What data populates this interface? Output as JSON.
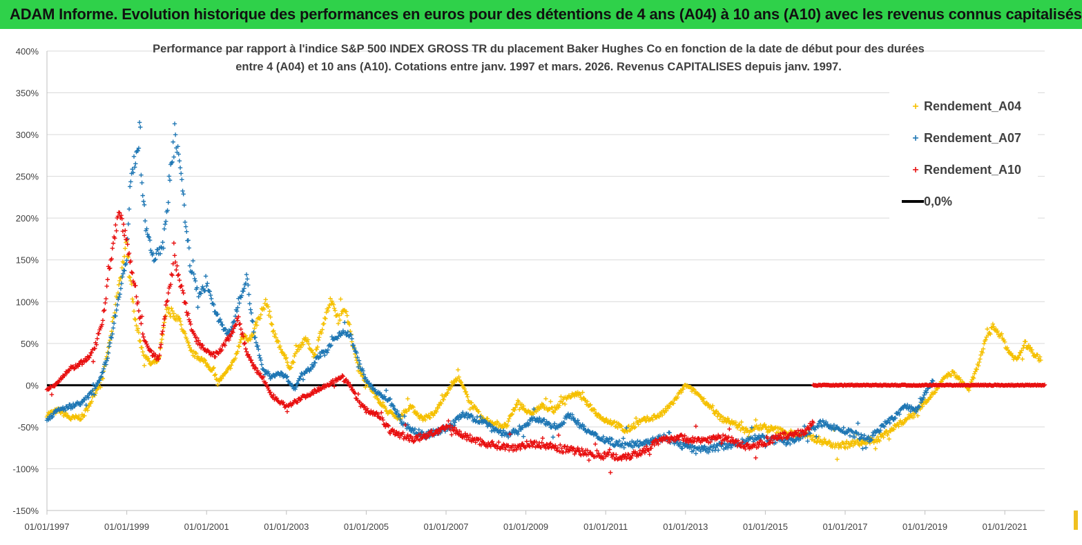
{
  "banner": {
    "title": "ADAM Informe. Evolution historique des performances en euros pour des détentions de 4 ans (A04) à 10 ans (A10) avec les revenus connus capitalisés"
  },
  "chart_data": {
    "type": "scatter",
    "title_line1": "Performance par rapport à l'indice S&P 500 INDEX GROSS TR  du placement Baker Hughes Co en fonction de la date de début pour des durées",
    "title_line2": "entre 4 (A04) et 10 ans (A10). Cotations entre janv. 1997 et mars. 2026. Revenus CAPITALISES depuis janv. 1997.",
    "y_unit": "%",
    "ylim": [
      -150,
      400
    ],
    "y_ticks": [
      "400%",
      "350%",
      "300%",
      "250%",
      "200%",
      "150%",
      "100%",
      "50%",
      "0%",
      "-50%",
      "-100%",
      "-150%"
    ],
    "y_tick_values": [
      400,
      350,
      300,
      250,
      200,
      150,
      100,
      50,
      0,
      -50,
      -100,
      -150
    ],
    "xlim": [
      1997.0,
      2022.0
    ],
    "x_ticks": [
      "01/01/1997",
      "01/01/1999",
      "01/01/2001",
      "01/01/2003",
      "01/01/2005",
      "01/01/2007",
      "01/01/2009",
      "01/01/2011",
      "01/01/2013",
      "01/01/2015",
      "01/01/2017",
      "01/01/2019",
      "01/01/2021"
    ],
    "x_tick_values": [
      1997,
      1999,
      2001,
      2003,
      2005,
      2007,
      2009,
      2011,
      2013,
      2015,
      2017,
      2019,
      2021
    ],
    "grid": "horizontal",
    "legend_position": "right",
    "series": [
      {
        "name": "Rendement_A04",
        "color": "#f5c000",
        "marker": "plus",
        "x": [
          1997.0,
          1997.3,
          1997.6,
          1997.9,
          1998.1,
          1998.4,
          1998.6,
          1998.8,
          1999.0,
          1999.2,
          1999.4,
          1999.6,
          1999.8,
          2000.0,
          2000.3,
          2000.6,
          2000.9,
          2001.1,
          2001.3,
          2001.5,
          2001.7,
          2001.9,
          2002.1,
          2002.3,
          2002.5,
          2002.7,
          2002.9,
          2003.1,
          2003.3,
          2003.5,
          2003.7,
          2003.9,
          2004.1,
          2004.3,
          2004.5,
          2004.7,
          2004.9,
          2005.2,
          2005.5,
          2005.8,
          2006.1,
          2006.4,
          2006.7,
          2007.0,
          2007.3,
          2007.6,
          2007.9,
          2008.2,
          2008.5,
          2008.8,
          2009.1,
          2009.4,
          2009.7,
          2010.0,
          2010.3,
          2010.6,
          2010.9,
          2011.2,
          2011.5,
          2011.8,
          2012.1,
          2012.4,
          2012.7,
          2013.0,
          2013.3,
          2013.6,
          2013.9,
          2014.2,
          2014.5,
          2014.8,
          2015.1,
          2015.4,
          2015.7,
          2016.0,
          2016.3,
          2016.6,
          2016.9,
          2017.2,
          2017.5,
          2017.8,
          2018.1,
          2018.4,
          2018.7,
          2019.0,
          2019.3,
          2019.5,
          2019.7,
          2019.9,
          2020.1,
          2020.3,
          2020.5,
          2020.7,
          2020.9,
          2021.1,
          2021.3,
          2021.5,
          2021.7,
          2021.9
        ],
        "y": [
          -35,
          -30,
          -40,
          -38,
          -20,
          10,
          60,
          120,
          170,
          80,
          40,
          25,
          30,
          90,
          80,
          40,
          30,
          20,
          5,
          15,
          30,
          60,
          55,
          80,
          100,
          60,
          40,
          20,
          45,
          55,
          35,
          70,
          100,
          80,
          90,
          40,
          10,
          -10,
          -30,
          -40,
          -25,
          -40,
          -35,
          -10,
          10,
          -20,
          -40,
          -45,
          -50,
          -20,
          -35,
          -25,
          -30,
          -15,
          -10,
          -25,
          -40,
          -45,
          -55,
          -45,
          -40,
          -35,
          -20,
          0,
          -10,
          -25,
          -40,
          -45,
          -55,
          -50,
          -52,
          -55,
          -58,
          -60,
          -65,
          -70,
          -72,
          -70,
          -68,
          -65,
          -55,
          -45,
          -35,
          -20,
          -5,
          10,
          15,
          5,
          -5,
          20,
          50,
          70,
          60,
          40,
          30,
          50,
          40,
          30
        ]
      },
      {
        "name": "Rendement_A07",
        "color": "#1f77b4",
        "marker": "plus",
        "x": [
          1997.0,
          1997.3,
          1997.6,
          1997.9,
          1998.1,
          1998.3,
          1998.5,
          1998.7,
          1998.85,
          1999.0,
          1999.1,
          1999.3,
          1999.5,
          1999.7,
          1999.9,
          2000.0,
          2000.2,
          2000.4,
          2000.6,
          2000.8,
          2001.0,
          2001.2,
          2001.4,
          2001.6,
          2001.8,
          2002.0,
          2002.2,
          2002.4,
          2002.6,
          2002.8,
          2003.0,
          2003.2,
          2003.4,
          2003.6,
          2003.8,
          2004.0,
          2004.2,
          2004.4,
          2004.6,
          2004.8,
          2005.0,
          2005.3,
          2005.6,
          2005.9,
          2006.2,
          2006.5,
          2006.8,
          2007.1,
          2007.4,
          2007.7,
          2008.0,
          2008.3,
          2008.6,
          2008.9,
          2009.2,
          2009.5,
          2009.8,
          2010.1,
          2010.4,
          2010.7,
          2011.0,
          2011.3,
          2011.6,
          2011.9,
          2012.2,
          2012.5,
          2012.8,
          2013.1,
          2013.4,
          2013.7,
          2014.0,
          2014.3,
          2014.6,
          2014.9,
          2015.2,
          2015.5,
          2015.8,
          2016.1,
          2016.4,
          2016.7,
          2017.0,
          2017.3,
          2017.6,
          2017.9,
          2018.2,
          2018.5,
          2018.8,
          2019.0,
          2019.2
        ],
        "y": [
          -40,
          -30,
          -25,
          -20,
          -10,
          5,
          30,
          80,
          120,
          150,
          250,
          290,
          180,
          150,
          170,
          200,
          310,
          230,
          140,
          110,
          120,
          90,
          70,
          60,
          100,
          130,
          60,
          20,
          10,
          15,
          10,
          -5,
          15,
          20,
          35,
          40,
          55,
          65,
          60,
          30,
          5,
          -10,
          -20,
          -45,
          -55,
          -60,
          -55,
          -50,
          -35,
          -40,
          -45,
          -55,
          -60,
          -50,
          -40,
          -45,
          -50,
          -35,
          -50,
          -60,
          -65,
          -70,
          -72,
          -68,
          -65,
          -62,
          -70,
          -75,
          -78,
          -75,
          -72,
          -70,
          -65,
          -62,
          -66,
          -68,
          -64,
          -55,
          -45,
          -50,
          -55,
          -60,
          -65,
          -50,
          -40,
          -25,
          -30,
          -10,
          5
        ]
      },
      {
        "name": "Rendement_A10",
        "color": "#e81010",
        "marker": "plus",
        "x": [
          1997.0,
          1997.2,
          1997.4,
          1997.6,
          1997.8,
          1998.0,
          1998.2,
          1998.4,
          1998.6,
          1998.8,
          1999.0,
          1999.2,
          1999.4,
          1999.6,
          1999.8,
          2000.0,
          2000.2,
          2000.4,
          2000.6,
          2000.8,
          2001.0,
          2001.2,
          2001.4,
          2001.6,
          2001.8,
          2002.0,
          2002.2,
          2002.4,
          2002.6,
          2002.8,
          2003.0,
          2003.2,
          2003.4,
          2003.6,
          2003.8,
          2004.0,
          2004.2,
          2004.4,
          2004.6,
          2004.8,
          2005.0,
          2005.3,
          2005.6,
          2005.9,
          2006.2,
          2006.5,
          2006.8,
          2007.1,
          2007.4,
          2007.7,
          2008.0,
          2008.3,
          2008.6,
          2008.9,
          2009.2,
          2009.5,
          2009.8,
          2010.1,
          2010.4,
          2010.7,
          2011.0,
          2011.3,
          2011.6,
          2011.9,
          2012.2,
          2012.5,
          2012.8,
          2013.1,
          2013.4,
          2013.7,
          2014.0,
          2014.3,
          2014.6,
          2014.9,
          2015.2,
          2015.5,
          2015.8,
          2016.0,
          2016.2
        ],
        "y": [
          -5,
          0,
          10,
          20,
          25,
          30,
          45,
          80,
          150,
          210,
          170,
          120,
          60,
          40,
          30,
          100,
          150,
          110,
          70,
          50,
          40,
          35,
          45,
          60,
          80,
          40,
          20,
          10,
          -10,
          -20,
          -25,
          -20,
          -15,
          -10,
          -5,
          0,
          5,
          10,
          0,
          -20,
          -30,
          -35,
          -55,
          -60,
          -65,
          -60,
          -55,
          -50,
          -60,
          -65,
          -70,
          -72,
          -75,
          -72,
          -70,
          -72,
          -75,
          -78,
          -80,
          -82,
          -84,
          -86,
          -84,
          -80,
          -70,
          -65,
          -62,
          -65,
          -66,
          -64,
          -62,
          -70,
          -74,
          -70,
          -65,
          -60,
          -58,
          -55,
          -45
        ]
      },
      {
        "name": "Rendement_A10_zero",
        "color": "#e81010",
        "marker": "plus",
        "x_range": [
          2016.2,
          2022.0
        ],
        "y": 0
      }
    ],
    "reference_line": {
      "name": "0,0%",
      "value": 0,
      "color": "#000000"
    }
  },
  "legend": {
    "items": [
      {
        "label": "Rendement_A04",
        "color": "#f5c000",
        "symbol": "plus"
      },
      {
        "label": "Rendement_A07",
        "color": "#1f77b4",
        "symbol": "plus"
      },
      {
        "label": "Rendement_A10",
        "color": "#e81010",
        "symbol": "plus"
      },
      {
        "label": "0,0%",
        "color": "#000000",
        "symbol": "line"
      }
    ]
  }
}
